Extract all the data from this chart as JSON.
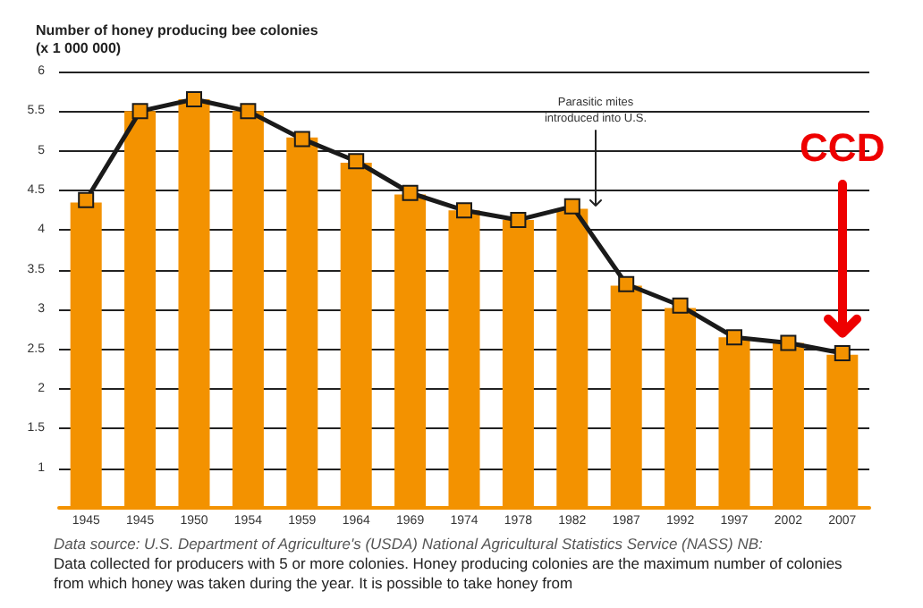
{
  "chart_data": {
    "type": "bar",
    "ylabel": "Number of honey producing bee colonies\n(x 1 000 000)",
    "categories": [
      "1945",
      "1945",
      "1950",
      "1954",
      "1959",
      "1964",
      "1969",
      "1974",
      "1978",
      "1982",
      "1987",
      "1992",
      "1997",
      "2002",
      "2007"
    ],
    "series": [
      {
        "color": "#f39200",
        "values": [
          4.35,
          5.5,
          5.65,
          5.5,
          5.17,
          4.85,
          4.45,
          4.25,
          4.13,
          4.27,
          3.3,
          3.02,
          2.65,
          2.58,
          2.43
        ]
      },
      {
        "type": "line",
        "color": "#1a1a1a",
        "marker": "square",
        "values": [
          4.38,
          5.5,
          5.65,
          5.5,
          5.15,
          4.87,
          4.47,
          4.25,
          4.13,
          4.3,
          3.32,
          3.05,
          2.65,
          2.58,
          2.45
        ]
      }
    ],
    "ylim": [
      0.5,
      6
    ],
    "yticks": [
      1,
      1.5,
      2,
      2.5,
      3,
      3.5,
      4,
      4.5,
      5,
      5.5,
      6
    ],
    "grid": "y",
    "annotations": [
      "Parasitic mites\nintroduced into U.S.",
      "CCD",
      "Data source: U.S. Department of Agriculture's (USDA) National Agricultural Statistics Service (NASS) NB:",
      "Data collected for producers with 5 or more colonies. Honey producing colonies are the maximum number of colonies from which honey was taken during the year. It is possible to take honey from"
    ]
  }
}
